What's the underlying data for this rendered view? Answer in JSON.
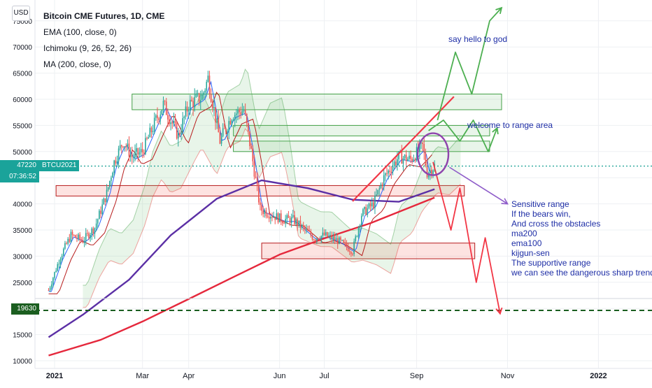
{
  "header": {
    "currency_button": "USD",
    "title": "Bitcoin CME Futures, 1D, CME",
    "indicators": [
      "EMA (100, close, 0)",
      "Ichimoku (9, 26, 52, 26)",
      "MA (200, close, 0)"
    ]
  },
  "price_tags": {
    "current_price": "47220",
    "countdown": "07:36:52",
    "symbol": "BTCU2021",
    "support_level": "19630"
  },
  "annotations": {
    "say_hello": "say hello to god",
    "welcome": "welcome to range area",
    "sensitive": [
      "Sensitive range",
      "If the bears win,",
      "And cross the obstacles",
      "ma200",
      "ema100",
      "kijgun-sen",
      "The supportive range",
      "we can see the dangerous sharp trend"
    ]
  },
  "colors": {
    "bull": "#26a69a",
    "bear": "#ef5350",
    "ema100": "#5b2fa5",
    "ma200": "#e5283c",
    "tenkan": "#2962ff",
    "kijun": "#b71c1c",
    "support_line": "#1b5e20",
    "annotation_text": "#1e2ea6"
  },
  "chart_data": {
    "type": "line",
    "title": "Bitcoin CME Futures, 1D, CME",
    "x_ticks": [
      "2021",
      "Mar",
      "Apr",
      "Jun",
      "Jul",
      "Sep",
      "Nov",
      "2022"
    ],
    "y_ticks": [
      10000,
      15000,
      20000,
      25000,
      30000,
      35000,
      40000,
      45000,
      50000,
      55000,
      60000,
      65000,
      70000,
      75000
    ],
    "ylim": [
      10000,
      75000
    ],
    "grid": true,
    "price_close": {
      "dates": [
        "2020-12-28",
        "2021-01-05",
        "2021-01-12",
        "2021-01-20",
        "2021-01-28",
        "2021-02-05",
        "2021-02-10",
        "2021-02-16",
        "2021-02-22",
        "2021-03-01",
        "2021-03-10",
        "2021-03-15",
        "2021-03-25",
        "2021-04-01",
        "2021-04-10",
        "2021-04-14",
        "2021-04-22",
        "2021-04-30",
        "2021-05-08",
        "2021-05-13",
        "2021-05-19",
        "2021-05-26",
        "2021-06-03",
        "2021-06-10",
        "2021-06-18",
        "2021-06-24",
        "2021-07-01",
        "2021-07-10",
        "2021-07-20",
        "2021-07-26",
        "2021-08-03",
        "2021-08-10",
        "2021-08-20",
        "2021-08-28",
        "2021-09-05",
        "2021-09-08",
        "2021-09-13"
      ],
      "values": [
        23500,
        30000,
        34000,
        33000,
        35500,
        42000,
        48000,
        52000,
        49000,
        50000,
        56000,
        59000,
        53000,
        59000,
        60500,
        64000,
        52000,
        57000,
        58000,
        50000,
        39000,
        38000,
        37000,
        37000,
        35000,
        33500,
        34000,
        33000,
        31000,
        38000,
        40000,
        45000,
        49000,
        48500,
        51000,
        46000,
        47220
      ]
    },
    "series": [
      {
        "name": "EMA (100, close, 0)",
        "dates": [
          "2020-12-28",
          "2021-01-20",
          "2021-02-20",
          "2021-03-20",
          "2021-04-20",
          "2021-05-20",
          "2021-06-20",
          "2021-07-20",
          "2021-08-20",
          "2021-09-13"
        ],
        "values": [
          14500,
          18800,
          25500,
          34000,
          41000,
          44500,
          43000,
          40800,
          40400,
          42800
        ]
      },
      {
        "name": "MA (200, close, 0)",
        "dates": [
          "2020-12-28",
          "2021-02-01",
          "2021-03-01",
          "2021-04-01",
          "2021-05-01",
          "2021-06-01",
          "2021-07-01",
          "2021-08-01",
          "2021-09-13"
        ],
        "values": [
          11000,
          14000,
          17500,
          21800,
          26000,
          30300,
          33400,
          36300,
          41200
        ]
      }
    ],
    "support_level": 19630,
    "zones": [
      {
        "start": "2021-02-22",
        "end": "2021-10-28",
        "low": 58000,
        "high": 61000,
        "color": "green"
      },
      {
        "start": "2021-05-01",
        "end": "2021-10-20",
        "low": 53000,
        "high": 55000,
        "color": "green"
      },
      {
        "start": "2021-05-01",
        "end": "2021-10-20",
        "low": 50000,
        "high": 52000,
        "color": "green"
      },
      {
        "start": "2021-01-02",
        "end": "2021-10-03",
        "low": 41500,
        "high": 43500,
        "color": "red"
      },
      {
        "start": "2021-05-20",
        "end": "2021-10-10",
        "low": 29500,
        "high": 32500,
        "color": "red"
      }
    ],
    "scenarios": [
      {
        "name": "bull",
        "dates": [
          "2021-09-15",
          "2021-09-27",
          "2021-10-08",
          "2021-10-20",
          "2021-10-28"
        ],
        "values": [
          56000,
          69000,
          61000,
          75000,
          77500
        ]
      },
      {
        "name": "range",
        "dates": [
          "2021-09-09",
          "2021-09-19",
          "2021-09-30",
          "2021-10-09",
          "2021-10-19",
          "2021-10-25"
        ],
        "values": [
          54000,
          56000,
          52000,
          56000,
          50000,
          54500
        ]
      },
      {
        "name": "bear",
        "dates": [
          "2021-09-12",
          "2021-09-24",
          "2021-09-30",
          "2021-10-11",
          "2021-10-17",
          "2021-10-27"
        ],
        "values": [
          48000,
          35000,
          43000,
          25000,
          33500,
          19000
        ]
      }
    ]
  }
}
